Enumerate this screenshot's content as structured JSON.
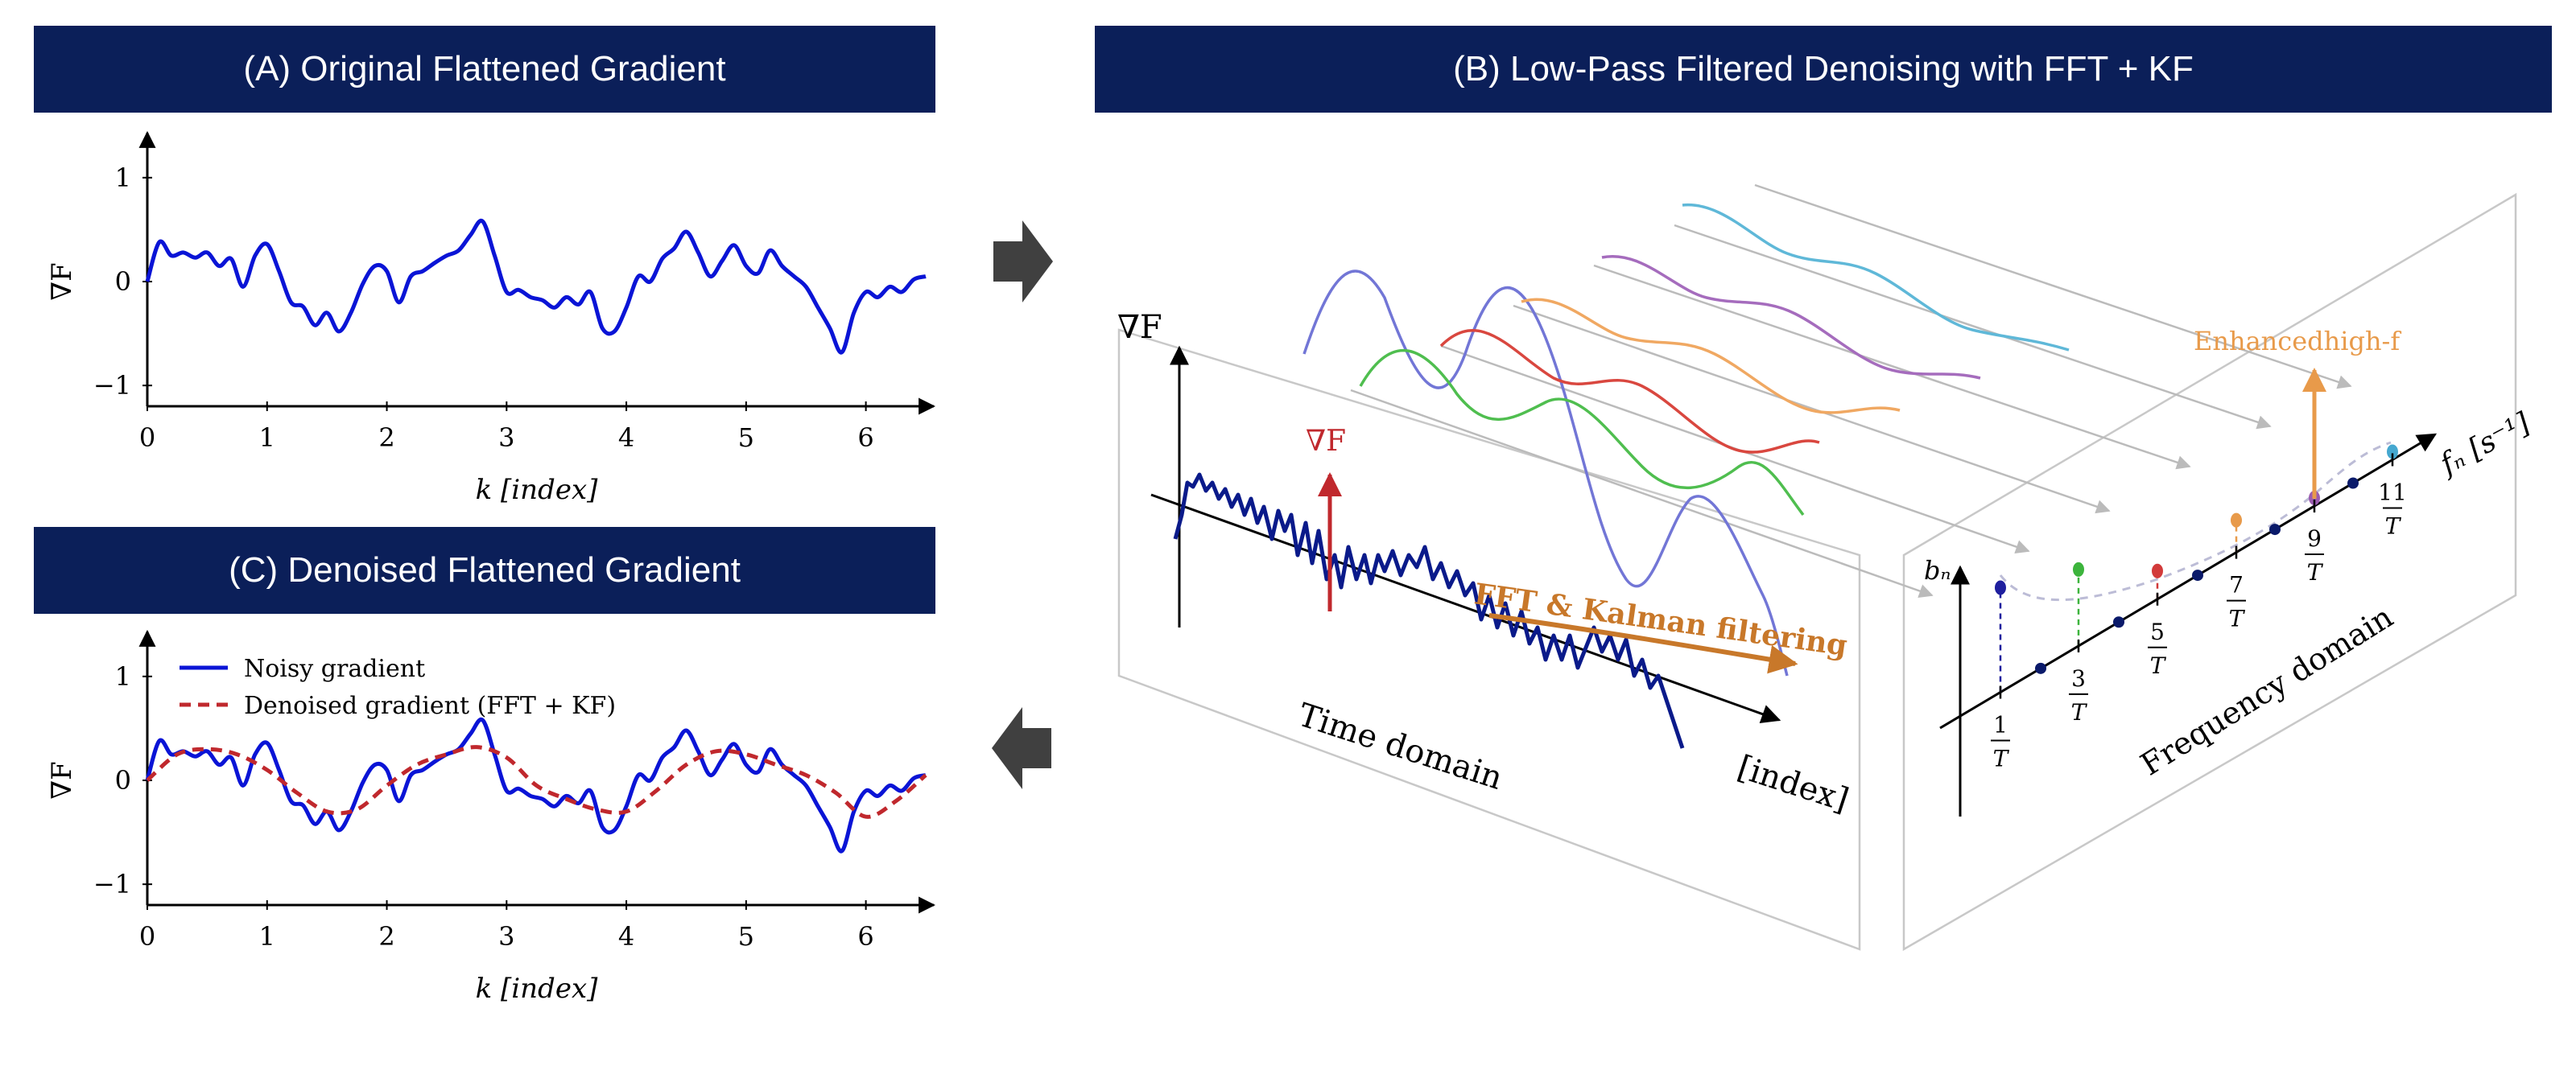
{
  "panels": {
    "a": {
      "title": "(A) Original Flattened Gradient"
    },
    "b": {
      "title": "(B) Low-Pass Filtered Denoising with FFT + KF"
    },
    "c": {
      "title": "(C) Denoised Flattened Gradient"
    }
  },
  "chart_data": [
    {
      "type": "line",
      "title": "(A) Original Flattened Gradient",
      "xlabel": "k [index]",
      "ylabel": "∇F",
      "xlim": [
        0,
        6.5
      ],
      "ylim": [
        -1.2,
        1.2
      ],
      "xticks": [
        "0",
        "1",
        "2",
        "3",
        "4",
        "5",
        "6"
      ],
      "yticks": [
        "−1",
        "0",
        "1"
      ],
      "series": [
        {
          "name": "",
          "color": "#0a14d6",
          "x": [
            0,
            0.1,
            0.2,
            0.3,
            0.4,
            0.5,
            0.6,
            0.7,
            0.8,
            0.9,
            1.0,
            1.1,
            1.2,
            1.3,
            1.4,
            1.5,
            1.6,
            1.7,
            1.8,
            1.9,
            2.0,
            2.1,
            2.2,
            2.3,
            2.4,
            2.5,
            2.6,
            2.7,
            2.8,
            2.9,
            3.0,
            3.1,
            3.2,
            3.3,
            3.4,
            3.5,
            3.6,
            3.7,
            3.8,
            3.9,
            4.0,
            4.1,
            4.2,
            4.3,
            4.4,
            4.5,
            4.6,
            4.7,
            4.8,
            4.9,
            5.0,
            5.1,
            5.2,
            5.3,
            5.4,
            5.5,
            5.6,
            5.7,
            5.8,
            5.9,
            6.0,
            6.1,
            6.2,
            6.3,
            6.4,
            6.5
          ],
          "y": [
            0,
            0.38,
            0.25,
            0.28,
            0.23,
            0.28,
            0.15,
            0.22,
            -0.05,
            0.25,
            0.36,
            0.1,
            -0.2,
            -0.24,
            -0.42,
            -0.3,
            -0.48,
            -0.3,
            -0.02,
            0.15,
            0.1,
            -0.2,
            0.05,
            0.1,
            0.18,
            0.25,
            0.3,
            0.45,
            0.58,
            0.25,
            -0.1,
            -0.08,
            -0.15,
            -0.18,
            -0.25,
            -0.15,
            -0.22,
            -0.1,
            -0.45,
            -0.48,
            -0.25,
            0.05,
            0.0,
            0.22,
            0.32,
            0.48,
            0.28,
            0.05,
            0.2,
            0.35,
            0.15,
            0.08,
            0.3,
            0.15,
            0.05,
            -0.05,
            -0.25,
            -0.45,
            -0.68,
            -0.3,
            -0.1,
            -0.15,
            -0.05,
            -0.1,
            0.02,
            0.05
          ]
        }
      ]
    },
    {
      "type": "line",
      "title": "(C) Denoised Flattened Gradient",
      "xlabel": "k [index]",
      "ylabel": "∇F",
      "xlim": [
        0,
        6.5
      ],
      "ylim": [
        -1.2,
        1.2
      ],
      "xticks": [
        "0",
        "1",
        "2",
        "3",
        "4",
        "5",
        "6"
      ],
      "yticks": [
        "−1",
        "0",
        "1"
      ],
      "legend_position": "top-left",
      "series": [
        {
          "name": "Noisy gradient",
          "color": "#0a14d6",
          "style": "solid",
          "x": [
            0,
            0.1,
            0.2,
            0.3,
            0.4,
            0.5,
            0.6,
            0.7,
            0.8,
            0.9,
            1.0,
            1.1,
            1.2,
            1.3,
            1.4,
            1.5,
            1.6,
            1.7,
            1.8,
            1.9,
            2.0,
            2.1,
            2.2,
            2.3,
            2.4,
            2.5,
            2.6,
            2.7,
            2.8,
            2.9,
            3.0,
            3.1,
            3.2,
            3.3,
            3.4,
            3.5,
            3.6,
            3.7,
            3.8,
            3.9,
            4.0,
            4.1,
            4.2,
            4.3,
            4.4,
            4.5,
            4.6,
            4.7,
            4.8,
            4.9,
            5.0,
            5.1,
            5.2,
            5.3,
            5.4,
            5.5,
            5.6,
            5.7,
            5.8,
            5.9,
            6.0,
            6.1,
            6.2,
            6.3,
            6.4,
            6.5
          ],
          "y": [
            0,
            0.38,
            0.25,
            0.28,
            0.23,
            0.28,
            0.15,
            0.22,
            -0.05,
            0.25,
            0.36,
            0.1,
            -0.2,
            -0.24,
            -0.42,
            -0.3,
            -0.48,
            -0.3,
            -0.02,
            0.15,
            0.1,
            -0.2,
            0.05,
            0.1,
            0.18,
            0.25,
            0.3,
            0.45,
            0.58,
            0.25,
            -0.1,
            -0.08,
            -0.15,
            -0.18,
            -0.25,
            -0.15,
            -0.22,
            -0.1,
            -0.45,
            -0.48,
            -0.25,
            0.05,
            0.0,
            0.22,
            0.32,
            0.48,
            0.28,
            0.05,
            0.2,
            0.35,
            0.15,
            0.08,
            0.3,
            0.15,
            0.05,
            -0.05,
            -0.25,
            -0.45,
            -0.68,
            -0.3,
            -0.1,
            -0.15,
            -0.05,
            -0.1,
            0.02,
            0.05
          ]
        },
        {
          "name": "Denoised gradient (FFT + KF)",
          "color": "#c0282d",
          "style": "dashed",
          "x": [
            0,
            0.25,
            0.5,
            0.75,
            1.0,
            1.25,
            1.5,
            1.75,
            2.0,
            2.25,
            2.5,
            2.75,
            3.0,
            3.25,
            3.5,
            3.75,
            4.0,
            4.25,
            4.5,
            4.75,
            5.0,
            5.25,
            5.5,
            5.75,
            6.0,
            6.25,
            6.5
          ],
          "y": [
            0,
            0.25,
            0.3,
            0.25,
            0.1,
            -0.12,
            -0.3,
            -0.28,
            -0.05,
            0.15,
            0.25,
            0.32,
            0.22,
            -0.05,
            -0.18,
            -0.28,
            -0.3,
            -0.1,
            0.15,
            0.28,
            0.25,
            0.15,
            0.05,
            -0.12,
            -0.35,
            -0.2,
            0.05
          ]
        }
      ]
    }
  ],
  "diagram": {
    "time_domain": {
      "axis_label_y": "∇F",
      "axis_label_x": "[index]",
      "gradient_label": "∇F",
      "process_label": "FFT & Kalman filtering",
      "plane_label": "Time domain"
    },
    "frequency_domain": {
      "axis_label_y": "bₙ",
      "axis_label_x": "fₙ [s⁻¹]",
      "enhanced_label": "Enhancedhigh-f",
      "plane_label": "Frequency domain",
      "tick_numerators": [
        "1",
        "3",
        "5",
        "7",
        "9",
        "11"
      ],
      "tick_denominator": "T",
      "component_colors": [
        "#1f1f9e",
        "#3cb43c",
        "#d23a3a",
        "#e89a4a",
        "#9a5bb0",
        "#45a8d0"
      ]
    },
    "colors": {
      "banner": "#0b1f59",
      "time_signal": "#0a1a8a",
      "arrow_red": "#c0282d",
      "arrow_orange": "#c8782a",
      "enhanced": "#e89a4a"
    }
  },
  "arrows": {
    "right": "right-arrow-icon",
    "left": "left-arrow-icon"
  }
}
